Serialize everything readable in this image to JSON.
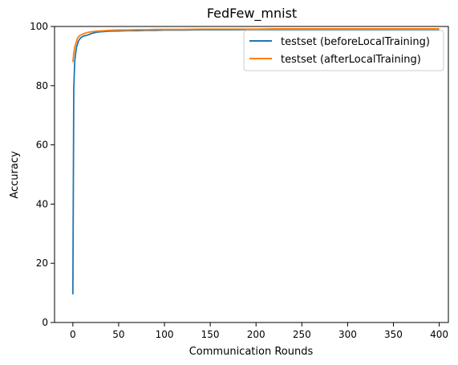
{
  "chart_data": {
    "type": "line",
    "title": "FedFew_mnist",
    "xlabel": "Communication Rounds",
    "ylabel": "Accuracy",
    "xlim": [
      -20,
      410
    ],
    "ylim": [
      0,
      100
    ],
    "xticks": [
      0,
      50,
      100,
      150,
      200,
      250,
      300,
      350,
      400
    ],
    "yticks": [
      0,
      20,
      40,
      60,
      80,
      100
    ],
    "grid": false,
    "legend": "top-right",
    "series": [
      {
        "name": "testset (beforeLocalTraining)",
        "color": "#1f77b4",
        "x": [
          0,
          1,
          2,
          3,
          4,
          5,
          6,
          8,
          10,
          12,
          15,
          18,
          20,
          25,
          30,
          35,
          40,
          50,
          60,
          70,
          80,
          90,
          100,
          120,
          140,
          160,
          180,
          200,
          220,
          240,
          260,
          280,
          300,
          320,
          340,
          360,
          380,
          400
        ],
        "y": [
          9.5,
          79,
          88,
          91,
          93,
          94,
          95,
          96,
          96.5,
          96.8,
          97,
          97.3,
          97.6,
          98,
          98.2,
          98.3,
          98.4,
          98.5,
          98.6,
          98.6,
          98.7,
          98.7,
          98.8,
          98.8,
          98.9,
          98.9,
          98.9,
          99,
          99,
          99,
          99,
          99,
          99,
          99,
          99,
          99,
          99,
          99
        ]
      },
      {
        "name": "testset (afterLocalTraining)",
        "color": "#ff7f0e",
        "x": [
          0,
          1,
          2,
          3,
          4,
          5,
          6,
          8,
          10,
          12,
          15,
          18,
          20,
          25,
          30,
          35,
          40,
          50,
          60,
          70,
          80,
          90,
          100,
          120,
          140,
          160,
          180,
          200,
          220,
          240,
          260,
          280,
          300,
          320,
          340,
          360,
          380,
          400
        ],
        "y": [
          88,
          91,
          93,
          94,
          95,
          96,
          96.5,
          97,
          97.3,
          97.6,
          97.9,
          98.1,
          98.2,
          98.4,
          98.5,
          98.6,
          98.7,
          98.8,
          98.8,
          98.9,
          98.9,
          99,
          99,
          99,
          99.1,
          99.1,
          99.1,
          99.1,
          99.2,
          99.2,
          99.2,
          99.2,
          99.2,
          99.2,
          99.2,
          99.2,
          99.2,
          99.2
        ]
      }
    ]
  }
}
